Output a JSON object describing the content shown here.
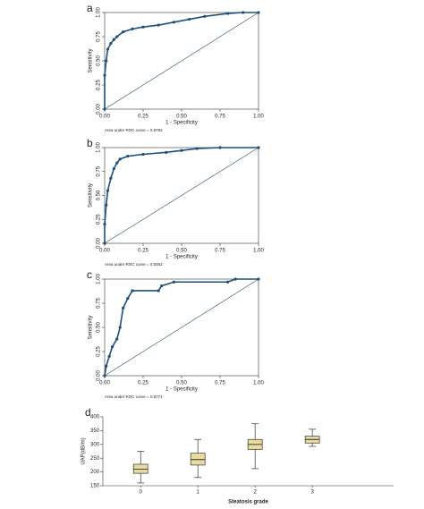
{
  "chart_data": [
    {
      "type": "line",
      "panel": "a",
      "xlabel": "1 - Specificity",
      "ylabel": "Sensitivity",
      "annotation": "Area under ROC curve = 0.8782",
      "color": "#1f4e79",
      "x": [
        0,
        0,
        0.01,
        0.02,
        0.04,
        0.06,
        0.08,
        0.12,
        0.18,
        0.25,
        0.35,
        0.45,
        0.55,
        0.65,
        0.8,
        0.9,
        1
      ],
      "values": [
        0,
        0.35,
        0.5,
        0.62,
        0.68,
        0.72,
        0.75,
        0.8,
        0.83,
        0.85,
        0.87,
        0.9,
        0.93,
        0.96,
        0.99,
        1,
        1
      ],
      "xlim": [
        0,
        1
      ],
      "ylim": [
        0,
        1
      ],
      "xticks": [
        {
          "value": 0,
          "label": "0.00"
        },
        {
          "value": 0.25,
          "label": "0.25"
        },
        {
          "value": 0.5,
          "label": "0.50"
        },
        {
          "value": 0.75,
          "label": "0.75"
        },
        {
          "value": 1,
          "label": "1.00"
        }
      ],
      "yticks": [
        {
          "value": 0,
          "label": "0.00"
        },
        {
          "value": 0.25,
          "label": "0.25"
        },
        {
          "value": 0.5,
          "label": "0.50"
        },
        {
          "value": 0.75,
          "label": "0.75"
        },
        {
          "value": 1,
          "label": "1.00"
        }
      ]
    },
    {
      "type": "line",
      "panel": "b",
      "xlabel": "1 - Specificity",
      "ylabel": "Sensitivity",
      "annotation": "Area under ROC curve = 0.9302",
      "color": "#1f4e79",
      "x": [
        0,
        0,
        0.01,
        0.02,
        0.04,
        0.06,
        0.08,
        0.1,
        0.15,
        0.25,
        0.4,
        0.5,
        0.6,
        0.75,
        1
      ],
      "values": [
        0,
        0.2,
        0.4,
        0.55,
        0.68,
        0.78,
        0.84,
        0.88,
        0.91,
        0.93,
        0.95,
        0.97,
        0.99,
        1,
        1
      ],
      "xlim": [
        0,
        1
      ],
      "ylim": [
        0,
        1
      ],
      "xticks": [
        {
          "value": 0,
          "label": "0.00"
        },
        {
          "value": 0.25,
          "label": "0.25"
        },
        {
          "value": 0.5,
          "label": "0.50"
        },
        {
          "value": 0.75,
          "label": "0.75"
        },
        {
          "value": 1,
          "label": "1.00"
        }
      ],
      "yticks": [
        {
          "value": 0,
          "label": "0.00"
        },
        {
          "value": 0.25,
          "label": "0.25"
        },
        {
          "value": 0.5,
          "label": "0.50"
        },
        {
          "value": 0.75,
          "label": "0.75"
        },
        {
          "value": 1,
          "label": "1.00"
        }
      ]
    },
    {
      "type": "line",
      "panel": "c",
      "xlabel": "1 - Specificity",
      "ylabel": "Sensitivity",
      "annotation": "Area under ROC curve = 0.8771",
      "color": "#1f4e79",
      "x": [
        0,
        0.01,
        0.03,
        0.05,
        0.08,
        0.1,
        0.12,
        0.15,
        0.18,
        0.35,
        0.37,
        0.45,
        0.8,
        0.85,
        1
      ],
      "values": [
        0,
        0.1,
        0.2,
        0.3,
        0.38,
        0.5,
        0.7,
        0.8,
        0.88,
        0.88,
        0.93,
        0.97,
        0.97,
        1,
        1
      ],
      "xlim": [
        0,
        1
      ],
      "ylim": [
        0,
        1
      ],
      "xticks": [
        {
          "value": 0,
          "label": "0.00"
        },
        {
          "value": 0.25,
          "label": "0.25"
        },
        {
          "value": 0.5,
          "label": "0.50"
        },
        {
          "value": 0.75,
          "label": "0.75"
        },
        {
          "value": 1,
          "label": "1.00"
        }
      ],
      "yticks": [
        {
          "value": 0,
          "label": "0.00"
        },
        {
          "value": 0.25,
          "label": "0.25"
        },
        {
          "value": 0.5,
          "label": "0.50"
        },
        {
          "value": 0.75,
          "label": "0.75"
        },
        {
          "value": 1,
          "label": "1.00"
        }
      ]
    },
    {
      "type": "box",
      "panel": "d",
      "xlabel": "Steatosis grade",
      "ylabel": "UAP(dB/m)",
      "color": "#e6dba0",
      "categories": [
        "0",
        "1",
        "2",
        "3"
      ],
      "min": [
        160,
        180,
        212,
        293
      ],
      "q1": [
        195,
        225,
        282,
        305
      ],
      "median": [
        210,
        245,
        300,
        318
      ],
      "q3": [
        228,
        268,
        318,
        330
      ],
      "max": [
        275,
        318,
        375,
        355
      ],
      "ylim": [
        150,
        400
      ],
      "yticks": [
        150,
        200,
        250,
        300,
        350,
        400
      ]
    }
  ]
}
